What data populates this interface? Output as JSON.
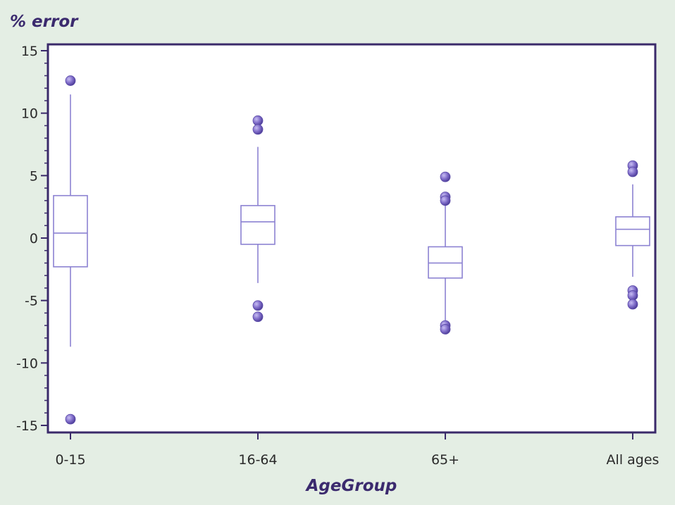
{
  "chart_data": {
    "type": "box",
    "title": "",
    "ylabel": "% error",
    "xlabel": "AgeGroup",
    "ylim": [
      -15,
      15
    ],
    "yticks": [
      -15,
      -10,
      -5,
      0,
      5,
      10,
      15
    ],
    "grid": false,
    "categories": [
      "0-15",
      "16-64",
      "65+",
      "All ages"
    ],
    "boxes": [
      {
        "category": "0-15",
        "whisker_low": -8.7,
        "q1": -2.3,
        "median": 0.4,
        "q3": 3.4,
        "whisker_high": 11.5,
        "outliers": [
          12.6,
          -14.5
        ]
      },
      {
        "category": "16-64",
        "whisker_low": -3.6,
        "q1": -0.5,
        "median": 1.3,
        "q3": 2.6,
        "whisker_high": 7.3,
        "outliers": [
          9.4,
          8.7,
          -5.4,
          -6.3
        ]
      },
      {
        "category": "65+",
        "whisker_low": -6.8,
        "q1": -3.2,
        "median": -2.0,
        "q3": -0.7,
        "whisker_high": 2.6,
        "outliers": [
          4.9,
          3.3,
          3.0,
          -7.0,
          -7.3
        ]
      },
      {
        "category": "All ages",
        "whisker_low": -3.1,
        "q1": -0.6,
        "median": 0.7,
        "q3": 1.7,
        "whisker_high": 4.3,
        "outliers": [
          5.8,
          5.3,
          -4.2,
          -4.6,
          -5.3
        ]
      }
    ],
    "colors": {
      "box_line": "#8c82d2",
      "marker": "#7f6cc9",
      "frame": "#3a2a6a",
      "plot_bg": "#ffffff",
      "page_bg": "#e4eee4"
    }
  }
}
